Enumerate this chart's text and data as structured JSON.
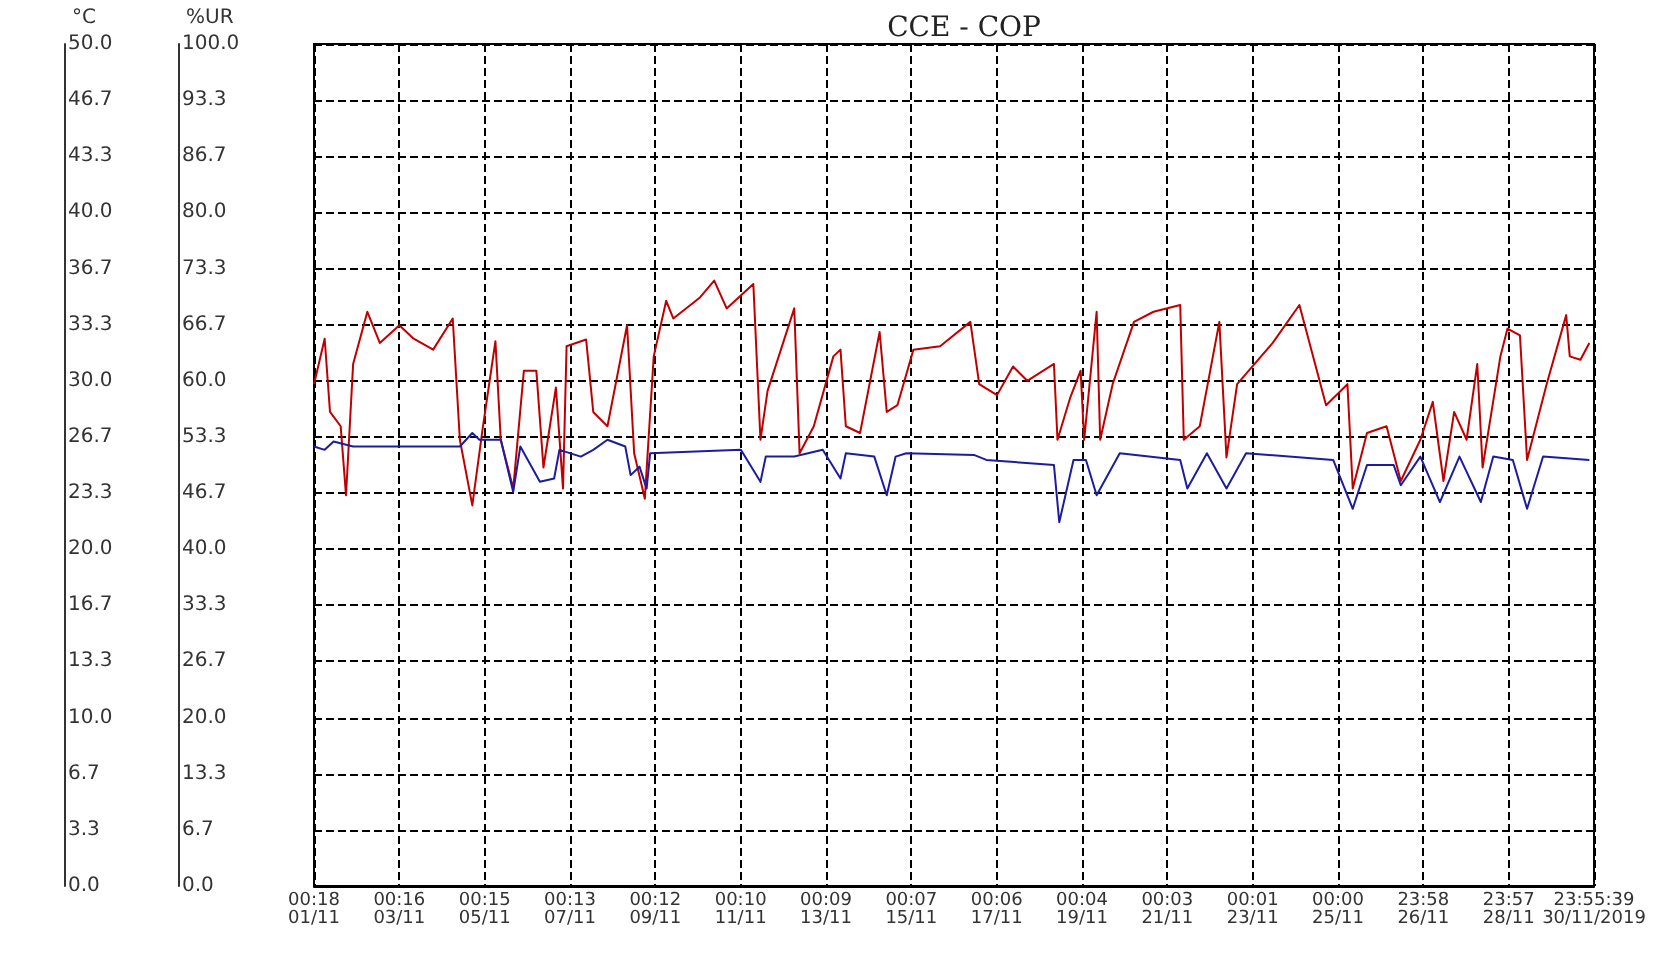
{
  "chart_data": {
    "type": "line",
    "title": "CCE - COP",
    "ylabel": "°C",
    "y2label": "%UR",
    "xlim": [
      "2019-11-01T00:18",
      "2019-11-30T23:55:39"
    ],
    "xticks": [
      {
        "value": "2019-11-01T00:18",
        "label": "00:18\n01/11"
      },
      {
        "value": "2019-11-03T00:16",
        "label": "00:16\n03/11"
      },
      {
        "value": "2019-11-05T00:15",
        "label": "00:15\n05/11"
      },
      {
        "value": "2019-11-07T00:13",
        "label": "00:13\n07/11"
      },
      {
        "value": "2019-11-09T00:12",
        "label": "00:12\n09/11"
      },
      {
        "value": "2019-11-11T00:10",
        "label": "00:10\n11/11"
      },
      {
        "value": "2019-11-13T00:09",
        "label": "00:09\n13/11"
      },
      {
        "value": "2019-11-15T00:07",
        "label": "00:07\n15/11"
      },
      {
        "value": "2019-11-17T00:06",
        "label": "00:06\n17/11"
      },
      {
        "value": "2019-11-19T00:04",
        "label": "00:04\n19/11"
      },
      {
        "value": "2019-11-21T00:03",
        "label": "00:03\n21/11"
      },
      {
        "value": "2019-11-23T00:01",
        "label": "00:01\n23/11"
      },
      {
        "value": "2019-11-25T00:00",
        "label": "00:00\n25/11"
      },
      {
        "value": "2019-11-26T23:58",
        "label": "23:58\n26/11"
      },
      {
        "value": "2019-11-28T23:57",
        "label": "23:57\n28/11"
      },
      {
        "value": "2019-11-30T23:55:39",
        "label": "23:55:39\n30/11/2019"
      }
    ],
    "ylim": [
      0,
      50
    ],
    "yticks": [
      {
        "value": 0,
        "label": "0.0"
      },
      {
        "value": 3.333,
        "label": "3.3"
      },
      {
        "value": 6.667,
        "label": "6.7"
      },
      {
        "value": 10,
        "label": "10.0"
      },
      {
        "value": 13.333,
        "label": "13.3"
      },
      {
        "value": 16.667,
        "label": "16.7"
      },
      {
        "value": 20,
        "label": "20.0"
      },
      {
        "value": 23.333,
        "label": "23.3"
      },
      {
        "value": 26.667,
        "label": "26.7"
      },
      {
        "value": 30,
        "label": "30.0"
      },
      {
        "value": 33.333,
        "label": "33.3"
      },
      {
        "value": 36.667,
        "label": "36.7"
      },
      {
        "value": 40,
        "label": "40.0"
      },
      {
        "value": 43.333,
        "label": "43.3"
      },
      {
        "value": 46.667,
        "label": "46.7"
      },
      {
        "value": 50,
        "label": "50.0"
      }
    ],
    "y2lim": [
      0,
      100
    ],
    "y2ticks": [
      {
        "value": 0,
        "label": "0.0"
      },
      {
        "value": 6.667,
        "label": "6.7"
      },
      {
        "value": 13.333,
        "label": "13.3"
      },
      {
        "value": 20,
        "label": "20.0"
      },
      {
        "value": 26.667,
        "label": "26.7"
      },
      {
        "value": 33.333,
        "label": "33.3"
      },
      {
        "value": 40,
        "label": "40.0"
      },
      {
        "value": 46.667,
        "label": "46.7"
      },
      {
        "value": 53.333,
        "label": "53.3"
      },
      {
        "value": 60,
        "label": "60.0"
      },
      {
        "value": 66.667,
        "label": "66.7"
      },
      {
        "value": 73.333,
        "label": "73.3"
      },
      {
        "value": 80,
        "label": "80.0"
      },
      {
        "value": 86.667,
        "label": "86.7"
      },
      {
        "value": 93.333,
        "label": "93.3"
      },
      {
        "value": 100,
        "label": "100.0"
      }
    ],
    "grid": true,
    "marker": "none",
    "line_style": "solid",
    "series": [
      {
        "color": "#c00000",
        "axis": "y2",
        "x": [
          "2019-11-01T00:18",
          "2019-11-01T06:18",
          "2019-11-01T09:18",
          "2019-11-01T15:18",
          "2019-11-01T18:18",
          "2019-11-01T22:18",
          "2019-11-02T06:18",
          "2019-11-02T13:18",
          "2019-11-03T00:18",
          "2019-11-03T08:18",
          "2019-11-03T19:18",
          "2019-11-04T06:18",
          "2019-11-04T10:18",
          "2019-11-04T17:18",
          "2019-11-04T23:18",
          "2019-11-05T06:18",
          "2019-11-05T09:18",
          "2019-11-05T16:18",
          "2019-11-05T22:18",
          "2019-11-06T05:18",
          "2019-11-06T09:18",
          "2019-11-06T16:18",
          "2019-11-06T20:18",
          "2019-11-06T22:18",
          "2019-11-07T09:18",
          "2019-11-07T13:18",
          "2019-11-07T21:18",
          "2019-11-08T08:18",
          "2019-11-08T12:18",
          "2019-11-08T18:18",
          "2019-11-08T23:18",
          "2019-11-09T06:18",
          "2019-11-09T10:18",
          "2019-11-10T01:18",
          "2019-11-10T09:18",
          "2019-11-10T16:18",
          "2019-11-11T07:18",
          "2019-11-11T11:18",
          "2019-11-11T15:18",
          "2019-11-12T06:18",
          "2019-11-12T09:18",
          "2019-11-12T17:18",
          "2019-11-13T04:18",
          "2019-11-13T08:18",
          "2019-11-13T11:18",
          "2019-11-13T19:18",
          "2019-11-14T06:18",
          "2019-11-14T10:18",
          "2019-11-14T16:18",
          "2019-11-15T01:18",
          "2019-11-15T16:18",
          "2019-11-16T09:18",
          "2019-11-16T14:18",
          "2019-11-17T00:18",
          "2019-11-17T09:18",
          "2019-11-17T17:18",
          "2019-11-18T08:18",
          "2019-11-18T10:18",
          "2019-11-18T17:18",
          "2019-11-18T23:18",
          "2019-11-19T01:18",
          "2019-11-19T08:18",
          "2019-11-19T10:18",
          "2019-11-19T17:18",
          "2019-11-20T05:18",
          "2019-11-20T16:18",
          "2019-11-21T07:18",
          "2019-11-21T09:18",
          "2019-11-21T18:18",
          "2019-11-22T05:18",
          "2019-11-22T09:18",
          "2019-11-22T15:18",
          "2019-11-23T11:18",
          "2019-11-24T02:18",
          "2019-11-24T17:18",
          "2019-11-25T05:18",
          "2019-11-25T08:18",
          "2019-11-25T16:18",
          "2019-11-26T03:18",
          "2019-11-26T11:18",
          "2019-11-26T22:18",
          "2019-11-27T05:18",
          "2019-11-27T11:18",
          "2019-11-27T17:18",
          "2019-11-28T00:18",
          "2019-11-28T06:18",
          "2019-11-28T09:18",
          "2019-11-28T19:18",
          "2019-11-28T23:18",
          "2019-11-29T06:18",
          "2019-11-29T10:18",
          "2019-11-29T21:18",
          "2019-11-30T08:18",
          "2019-11-30T10:18",
          "2019-11-30T16:18",
          "2019-11-30T21:18"
        ],
        "values": [
          59.6,
          65,
          56.3,
          54.6,
          46.4,
          62,
          68.2,
          64.5,
          66.6,
          65,
          63.7,
          67.4,
          53,
          45.2,
          54.6,
          64.7,
          53,
          47.2,
          61.2,
          61.2,
          49.7,
          59.2,
          47.2,
          64.1,
          64.9,
          56.3,
          54.6,
          66.6,
          51.4,
          46,
          62.9,
          69.5,
          67.4,
          69.9,
          71.9,
          68.6,
          71.5,
          53,
          58.8,
          68.6,
          51.4,
          54.6,
          62.9,
          63.7,
          54.6,
          53.8,
          65.8,
          56.3,
          57.1,
          63.7,
          64.1,
          67,
          59.6,
          58.3,
          61.7,
          60,
          62,
          53,
          57.9,
          61.2,
          53,
          68.2,
          53,
          59.6,
          67,
          68.2,
          69,
          53,
          54.6,
          67,
          50.9,
          59.6,
          64.5,
          69,
          57.1,
          59.6,
          47.2,
          53.8,
          54.6,
          48.1,
          53,
          57.5,
          48.1,
          56.3,
          53,
          62,
          49.7,
          62.9,
          66.2,
          65.4,
          50.6,
          59.6,
          67.8,
          62.9,
          62.5,
          64.5
        ]
      },
      {
        "color": "#1c1ca0",
        "x": [
          "2019-11-01T00:18",
          "2019-11-01T06:18",
          "2019-11-01T11:18",
          "2019-11-01T22:18",
          "2019-11-04T10:18",
          "2019-11-04T17:18",
          "2019-11-04T21:18",
          "2019-11-05T09:18",
          "2019-11-05T16:18",
          "2019-11-05T20:18",
          "2019-11-06T07:18",
          "2019-11-06T15:18",
          "2019-11-06T18:18",
          "2019-11-07T06:18",
          "2019-11-07T13:18",
          "2019-11-07T21:18",
          "2019-11-08T07:18",
          "2019-11-08T10:18",
          "2019-11-08T15:18",
          "2019-11-08T19:18",
          "2019-11-08T21:18",
          "2019-11-11T00:18",
          "2019-11-11T11:18",
          "2019-11-11T14:18",
          "2019-11-12T06:18",
          "2019-11-12T22:18",
          "2019-11-13T08:18",
          "2019-11-13T11:18",
          "2019-11-14T03:18",
          "2019-11-14T10:18",
          "2019-11-14T15:18",
          "2019-11-14T21:18",
          "2019-11-16T11:18",
          "2019-11-16T18:18",
          "2019-11-18T08:18",
          "2019-11-18T11:18",
          "2019-11-18T19:18",
          "2019-11-19T02:18",
          "2019-11-19T08:18",
          "2019-11-19T21:18",
          "2019-11-21T07:18",
          "2019-11-21T11:18",
          "2019-11-21T22:18",
          "2019-11-22T09:18",
          "2019-11-22T20:18",
          "2019-11-24T21:18",
          "2019-11-25T08:18",
          "2019-11-25T16:18",
          "2019-11-26T07:18",
          "2019-11-26T11:18",
          "2019-11-26T22:18",
          "2019-11-27T09:18",
          "2019-11-27T20:18",
          "2019-11-28T08:18",
          "2019-11-28T15:18",
          "2019-11-29T02:18",
          "2019-11-29T10:18",
          "2019-11-29T19:18",
          "2019-11-30T21:18"
        ],
        "values": [
          26.1,
          25.9,
          26.4,
          26.1,
          26.1,
          26.9,
          26.5,
          26.5,
          23.4,
          26.1,
          24,
          24.2,
          25.9,
          25.5,
          25.9,
          26.5,
          26.1,
          24.4,
          24.9,
          23.6,
          25.7,
          25.9,
          24,
          25.5,
          25.5,
          25.9,
          24.2,
          25.7,
          25.5,
          23.2,
          25.5,
          25.7,
          25.6,
          25.3,
          25,
          21.6,
          25.3,
          25.3,
          23.2,
          25.7,
          25.3,
          23.6,
          25.7,
          23.6,
          25.7,
          25.3,
          22.4,
          25,
          25,
          23.8,
          25.5,
          22.8,
          25.5,
          22.8,
          25.5,
          25.3,
          22.4,
          25.5,
          25.3
        ]
      }
    ]
  }
}
